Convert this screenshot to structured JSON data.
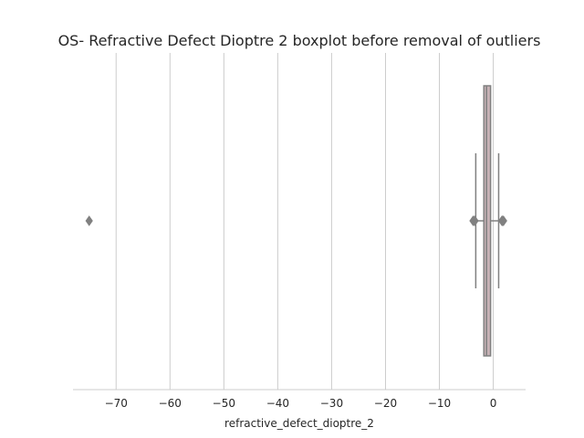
{
  "chart_data": {
    "type": "boxplot",
    "orientation": "horizontal",
    "title": "OS- Refractive Defect Dioptre 2 boxplot before removal of outliers",
    "xlabel": "refractive_defect_dioptre_2",
    "ylabel": "",
    "xlim": [
      -78,
      6
    ],
    "xticks": [
      -70,
      -60,
      -50,
      -40,
      -30,
      -20,
      -10,
      0
    ],
    "xtick_labels": [
      "−70",
      "−60",
      "−50",
      "−40",
      "−30",
      "−20",
      "−10",
      "0"
    ],
    "grid": "vertical",
    "box": {
      "whisker_low": -3.25,
      "q1": -1.75,
      "median": -1.25,
      "q3": -0.5,
      "whisker_high": 1.0
    },
    "outliers": [
      -75.0,
      -3.75,
      -3.5,
      -3.4,
      1.6,
      1.75,
      1.9
    ],
    "colors": {
      "box_fill": "#c7b2b6",
      "line": "#808080",
      "grid": "#cccccc",
      "axis": "#cccccc",
      "text": "#262626"
    }
  }
}
